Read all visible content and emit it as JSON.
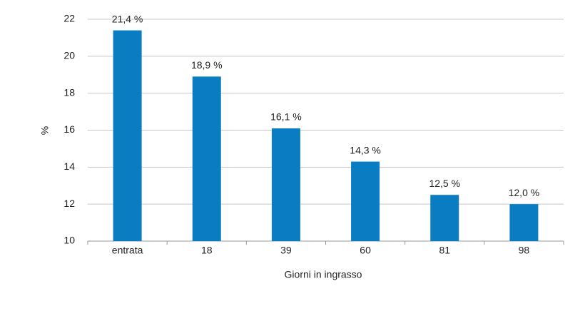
{
  "chart_data": {
    "type": "bar",
    "x_label": "Giorni in ingrasso",
    "y_label": "%",
    "categories": [
      "entrata",
      "18",
      "39",
      "60",
      "81",
      "98"
    ],
    "values": [
      21.4,
      18.9,
      16.1,
      14.3,
      12.5,
      12.0
    ],
    "value_labels": [
      "21,4 %",
      "18,9 %",
      "16,1 %",
      "14,3 %",
      "12,5 %",
      "12,0 %"
    ],
    "color": "#0a7dc2",
    "ylim": [
      10,
      22
    ],
    "yticks": [
      10,
      12,
      14,
      16,
      18,
      20,
      22
    ],
    "grid": true
  }
}
